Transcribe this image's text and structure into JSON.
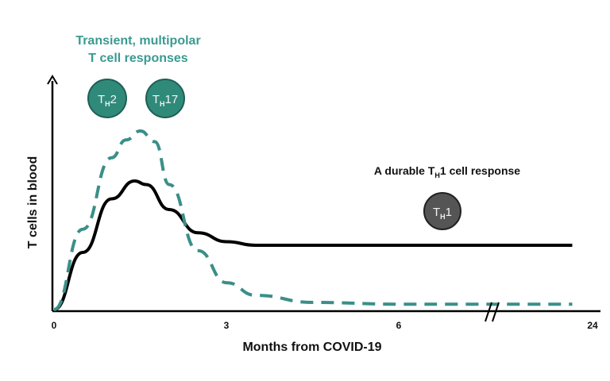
{
  "chart_data": {
    "type": "line",
    "xlabel": "Months from COVID-19",
    "ylabel": "T cells in blood",
    "x_ticks": [
      "0",
      "3",
      "6",
      "24"
    ],
    "axis_break": {
      "between": [
        "6",
        "24"
      ]
    },
    "series": [
      {
        "style": "solid",
        "color": "#000000",
        "x": [
          0,
          0.5,
          1.0,
          1.4,
          1.6,
          2.0,
          2.5,
          3.0,
          3.5,
          4.5,
          6.0,
          7.0,
          8.0,
          9.0
        ],
        "y": [
          0,
          0.32,
          0.62,
          0.72,
          0.7,
          0.56,
          0.43,
          0.38,
          0.36,
          0.36,
          0.36,
          0.36,
          0.36,
          0.36
        ]
      },
      {
        "style": "dashed",
        "color": "#3a8f88",
        "x": [
          0,
          0.5,
          1.0,
          1.25,
          1.5,
          1.75,
          2.0,
          2.5,
          3.0,
          3.5,
          4.5,
          6.0,
          7.0,
          8.0,
          9.0
        ],
        "y": [
          0,
          0.45,
          0.85,
          0.95,
          1.0,
          0.94,
          0.7,
          0.33,
          0.15,
          0.08,
          0.04,
          0.03,
          0.03,
          0.03,
          0.03
        ]
      }
    ],
    "annotations": {
      "transient_title_line1": "Transient, multipolar",
      "transient_title_line2": "T cell responses",
      "durable_prefix": "A durable T",
      "durable_subscript": "H",
      "durable_suffix": "1 cell response"
    },
    "cells": [
      {
        "main": "T",
        "sub": "H",
        "suffix": "2",
        "color": "#2f8a7a"
      },
      {
        "main": "T",
        "sub": "H",
        "suffix": "17",
        "color": "#2f8a7a"
      },
      {
        "main": "T",
        "sub": "H",
        "suffix": "1",
        "color": "#555555"
      }
    ],
    "colors": {
      "teal": "#3a9a90",
      "solid": "#000000",
      "dashed": "#3a8f88"
    }
  }
}
